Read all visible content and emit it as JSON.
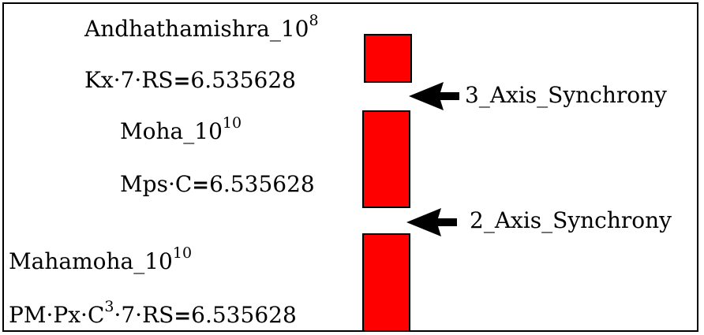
{
  "bar_color": "#ff0000",
  "arrow_color": "#000000",
  "blocks": [
    {
      "name": "Andhathamishra_10",
      "exp": "8",
      "formula": "Kx·7·RS",
      "equals": "=",
      "value": "6.535628"
    },
    {
      "name": "Moha_10",
      "exp": "10",
      "formula": "Mps·C",
      "equals": "=",
      "value": "6.535628"
    },
    {
      "name": "Mahamoha_10",
      "exp": "10",
      "formula_pre": "PM·Px·C",
      "formula_exp": "3",
      "formula_post": "·7·RS",
      "equals": "=",
      "value": "6.535628"
    }
  ],
  "arrows": [
    {
      "label": "3_Axis_Synchrony"
    },
    {
      "label": "2_Axis_Synchrony"
    }
  ]
}
